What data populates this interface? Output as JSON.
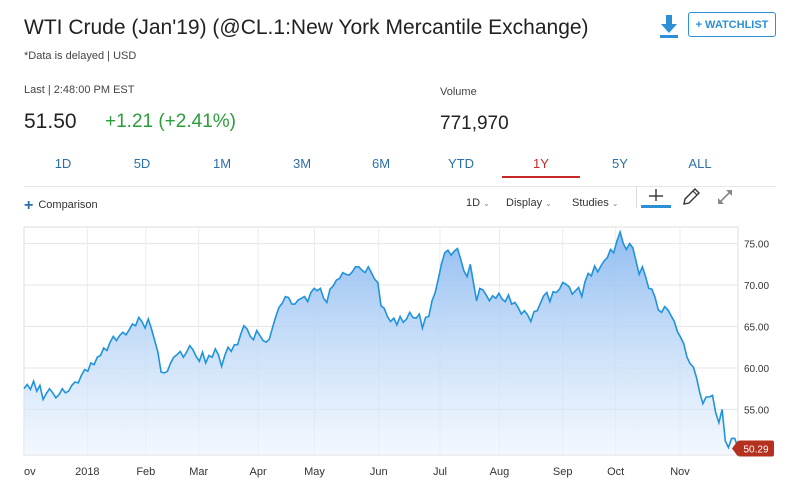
{
  "header": {
    "title": "WTI Crude (Jan'19) (@CL.1:New York Mercantile Exchange)",
    "subnote": "*Data is delayed | USD",
    "watchlist_label": "+ WATCHLIST",
    "download_icon": "download-icon"
  },
  "quote": {
    "last_label": "Last | 2:48:00 PM EST",
    "last_price": "51.50",
    "change": "+1.21 (+2.41%)",
    "change_color": "#2a9e3a",
    "volume_label": "Volume",
    "volume_value": "771,970"
  },
  "ranges": {
    "items": [
      "1D",
      "5D",
      "1M",
      "3M",
      "6M",
      "YTD",
      "1Y",
      "5Y",
      "ALL"
    ],
    "active": "1Y",
    "active_color": "#c62828"
  },
  "toolbar": {
    "comparison_label": "Comparison",
    "interval_label": "1D",
    "display_label": "Display",
    "studies_label": "Studies",
    "tools": [
      "crosshair-icon",
      "pencil-icon",
      "expand-icon"
    ]
  },
  "chart_data": {
    "type": "area",
    "x_tick_labels": [
      "ov",
      "2018",
      "Feb",
      "Mar",
      "Apr",
      "May",
      "Jun",
      "Jul",
      "Aug",
      "Sep",
      "Oct",
      "Nov"
    ],
    "y_ticks": [
      "75.00",
      "70.00",
      "65.00",
      "60.00",
      "55.00"
    ],
    "ylim": [
      49.5,
      77
    ],
    "grid": true,
    "series": [
      {
        "values": [
          57.5,
          58.0,
          57.4,
          58.4,
          57.2,
          57.9,
          56.2,
          56.9,
          57.5,
          57.0,
          56.4,
          56.8,
          57.5,
          57.0,
          57.2,
          57.9,
          58.3,
          58.2,
          59.1,
          59.8,
          59.6,
          60.6,
          60.4,
          61.3,
          61.5,
          62.4,
          62.1,
          63.1,
          63.8,
          63.3,
          63.9,
          64.3,
          64.0,
          64.6,
          65.3,
          65.1,
          66.1,
          65.6,
          64.8,
          65.9,
          64.7,
          63.3,
          61.9,
          59.5,
          59.4,
          59.6,
          60.6,
          61.3,
          61.6,
          62.0,
          61.3,
          61.9,
          62.7,
          62.2,
          61.4,
          60.8,
          61.9,
          60.6,
          61.5,
          61.3,
          62.3,
          61.6,
          60.2,
          61.5,
          62.5,
          62.0,
          62.8,
          62.8,
          64.1,
          65.1,
          64.7,
          63.8,
          63.4,
          64.5,
          63.9,
          63.3,
          63.1,
          63.5,
          64.9,
          66.2,
          67.3,
          67.8,
          68.6,
          68.5,
          67.7,
          67.7,
          68.2,
          68.4,
          68.6,
          68.0,
          69.1,
          69.6,
          69.3,
          69.6,
          68.4,
          67.9,
          69.5,
          69.9,
          70.6,
          70.8,
          71.5,
          71.3,
          71.2,
          71.6,
          72.2,
          72.2,
          71.8,
          71.5,
          72.2,
          71.5,
          70.7,
          70.3,
          67.5,
          67.2,
          66.2,
          65.6,
          66.0,
          65.2,
          66.2,
          65.5,
          65.9,
          66.7,
          66.1,
          66.0,
          66.5,
          64.8,
          66.1,
          66.2,
          68.1,
          69.1,
          70.8,
          72.6,
          73.9,
          74.2,
          73.6,
          74.1,
          74.4,
          73.1,
          71.7,
          71.0,
          72.5,
          70.3,
          68.1,
          69.6,
          69.4,
          68.8,
          68.1,
          68.7,
          68.4,
          69.0,
          68.3,
          68.0,
          68.8,
          67.7,
          67.9,
          67.3,
          66.5,
          66.9,
          66.4,
          65.6,
          66.8,
          66.9,
          67.8,
          68.7,
          69.1,
          68.0,
          69.2,
          69.1,
          69.5,
          70.3,
          70.1,
          69.8,
          68.9,
          69.3,
          69.7,
          68.6,
          70.4,
          71.4,
          71.1,
          72.3,
          71.6,
          72.3,
          72.9,
          73.3,
          74.3,
          73.9,
          75.3,
          76.4,
          75.0,
          74.3,
          75.0,
          74.5,
          72.9,
          71.3,
          72.2,
          71.0,
          69.6,
          69.5,
          68.5,
          67.0,
          66.7,
          67.4,
          67.0,
          66.3,
          65.6,
          64.4,
          63.7,
          62.9,
          61.3,
          60.5,
          60.1,
          58.8,
          57.0,
          55.7,
          56.5,
          56.5,
          56.7,
          54.6,
          53.4,
          55.0,
          51.2,
          50.4,
          51.5,
          51.5,
          50.3
        ]
      }
    ],
    "last_value_label": "50.29",
    "line_color": "#1f93dc",
    "label_color": "#b5301e"
  }
}
